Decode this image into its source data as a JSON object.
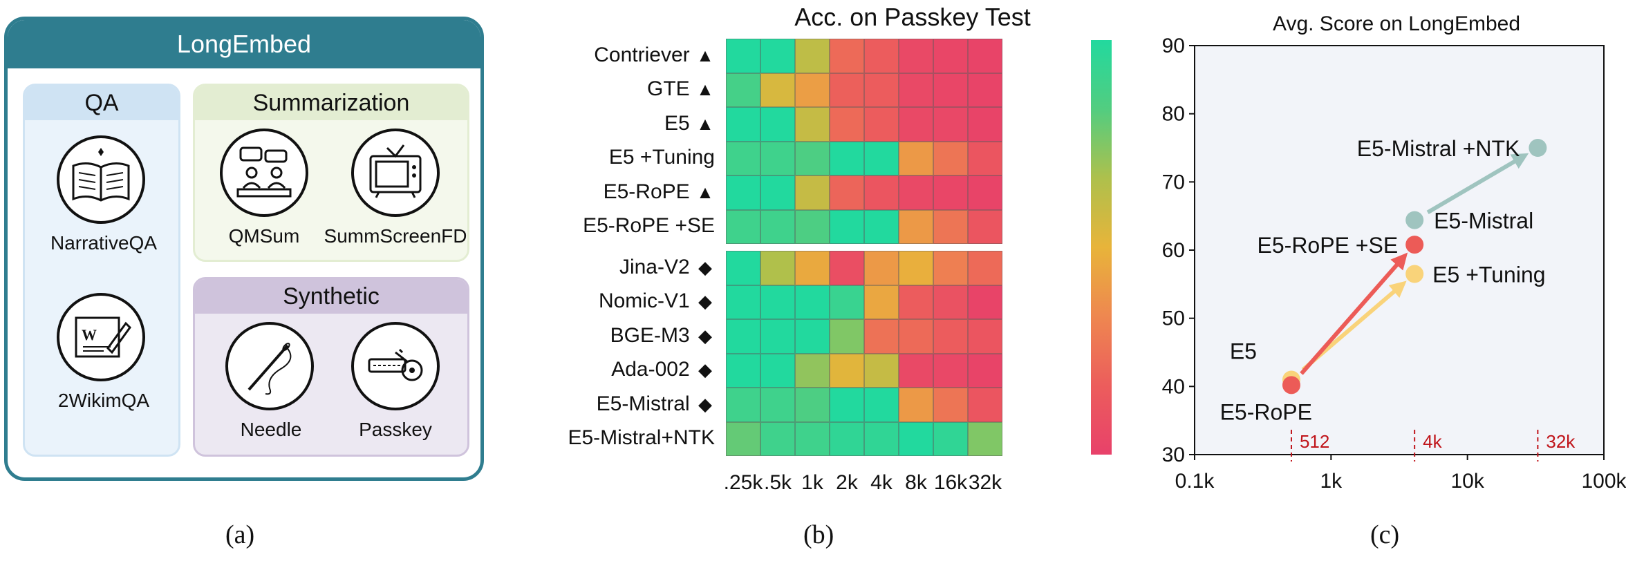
{
  "panel_a": {
    "header": "LongEmbed",
    "qa": {
      "title": "QA",
      "tasks": [
        "NarrativeQA",
        "2WikimQA"
      ]
    },
    "summarization": {
      "title": "Summarization",
      "tasks": [
        "QMSum",
        "SummScreenFD"
      ]
    },
    "synthetic": {
      "title": "Synthetic",
      "tasks": [
        "Needle",
        "Passkey"
      ]
    },
    "icons": [
      "open-book-icon",
      "wiki-document-icon",
      "meeting-icon",
      "television-icon",
      "needle-thread-icon",
      "key-icon"
    ]
  },
  "subfigure_labels": [
    "(a)",
    "(b)",
    "(c)"
  ],
  "chart_data": [
    {
      "type": "heatmap",
      "title": "Acc. on Passkey Test",
      "columns": [
        ".25k",
        ".5k",
        "1k",
        "2k",
        "4k",
        "8k",
        "16k",
        "32k"
      ],
      "rows": [
        {
          "name": "Contriever",
          "marker": "▲",
          "group": 1
        },
        {
          "name": "GTE",
          "marker": "▲",
          "group": 1
        },
        {
          "name": "E5",
          "marker": "▲",
          "group": 1
        },
        {
          "name": "E5 +Tuning",
          "marker": "",
          "group": 1
        },
        {
          "name": "E5-RoPE",
          "marker": "▲",
          "group": 1
        },
        {
          "name": "E5-RoPE +SE",
          "marker": "",
          "group": 1
        },
        {
          "name": "Jina-V2",
          "marker": "◆",
          "group": 2
        },
        {
          "name": "Nomic-V1",
          "marker": "◆",
          "group": 2
        },
        {
          "name": "BGE-M3",
          "marker": "◆",
          "group": 2
        },
        {
          "name": "Ada-002",
          "marker": "◆",
          "group": 2
        },
        {
          "name": "E5-Mistral",
          "marker": "◆",
          "group": 2
        },
        {
          "name": "E5-Mistral+NTK",
          "marker": "",
          "group": 2
        }
      ],
      "values": [
        [
          1.0,
          1.0,
          0.62,
          0.22,
          0.16,
          0.05,
          0.03,
          0.02
        ],
        [
          0.88,
          0.55,
          0.42,
          0.18,
          0.16,
          0.05,
          0.03,
          0.02
        ],
        [
          1.0,
          1.0,
          0.6,
          0.22,
          0.16,
          0.05,
          0.04,
          0.02
        ],
        [
          0.9,
          0.9,
          0.85,
          1.0,
          1.0,
          0.4,
          0.26,
          0.12
        ],
        [
          1.0,
          1.0,
          0.6,
          0.2,
          0.12,
          0.05,
          0.03,
          0.02
        ],
        [
          0.9,
          0.9,
          0.85,
          1.0,
          1.0,
          0.4,
          0.26,
          0.12
        ],
        [
          1.0,
          0.66,
          0.46,
          0.08,
          0.4,
          0.48,
          0.3,
          0.22
        ],
        [
          1.0,
          1.0,
          1.0,
          0.92,
          0.45,
          0.16,
          0.1,
          0.02
        ],
        [
          1.0,
          1.0,
          1.0,
          0.75,
          0.25,
          0.22,
          0.16,
          0.12
        ],
        [
          1.0,
          1.0,
          0.72,
          0.52,
          0.6,
          0.05,
          0.04,
          0.02
        ],
        [
          0.9,
          0.9,
          0.85,
          1.0,
          1.0,
          0.4,
          0.26,
          0.12
        ],
        [
          0.8,
          0.9,
          0.9,
          0.95,
          0.95,
          1.0,
          0.95,
          0.75
        ]
      ],
      "colorscale": [
        "#e8416a",
        "#ec5d5c",
        "#ee8750",
        "#e8b43a",
        "#aec04c",
        "#52cd80",
        "#22d99e"
      ]
    },
    {
      "type": "scatter",
      "title": "Avg. Score on LongEmbed",
      "xscale": "log",
      "xlim": [
        100,
        100000
      ],
      "ylim": [
        30,
        90
      ],
      "xticks": [
        100,
        1000,
        10000,
        100000
      ],
      "xtick_labels": [
        "0.1k",
        "1k",
        "10k",
        "100k"
      ],
      "yticks": [
        30,
        40,
        50,
        60,
        70,
        80,
        90
      ],
      "grid": false,
      "context_markers": [
        {
          "x": 512,
          "label": "512"
        },
        {
          "x": 4096,
          "label": "4k"
        },
        {
          "x": 32768,
          "label": "32k"
        }
      ],
      "points": [
        {
          "name": "E5",
          "x": 512,
          "y": 41.0,
          "color": "#f9d37a"
        },
        {
          "name": "E5-RoPE",
          "x": 512,
          "y": 40.2,
          "color": "#ec5b57"
        },
        {
          "name": "E5 +Tuning",
          "x": 4096,
          "y": 56.5,
          "color": "#f9d37a"
        },
        {
          "name": "E5-RoPE +SE",
          "x": 4096,
          "y": 60.8,
          "color": "#ec5b57"
        },
        {
          "name": "E5-Mistral",
          "x": 4096,
          "y": 64.4,
          "color": "#9fc4bf"
        },
        {
          "name": "E5-Mistral +NTK",
          "x": 32768,
          "y": 75.0,
          "color": "#9fc4bf"
        }
      ],
      "arrows": [
        {
          "from": "E5",
          "to": "E5 +Tuning",
          "color": "#f9d37a"
        },
        {
          "from": "E5-RoPE",
          "to": "E5-RoPE +SE",
          "color": "#ec5b57"
        },
        {
          "from": "E5-Mistral",
          "to": "E5-Mistral +NTK",
          "color": "#9fc4bf"
        }
      ],
      "marker_color": "#c0141a",
      "background": "#f2f4f9"
    }
  ]
}
